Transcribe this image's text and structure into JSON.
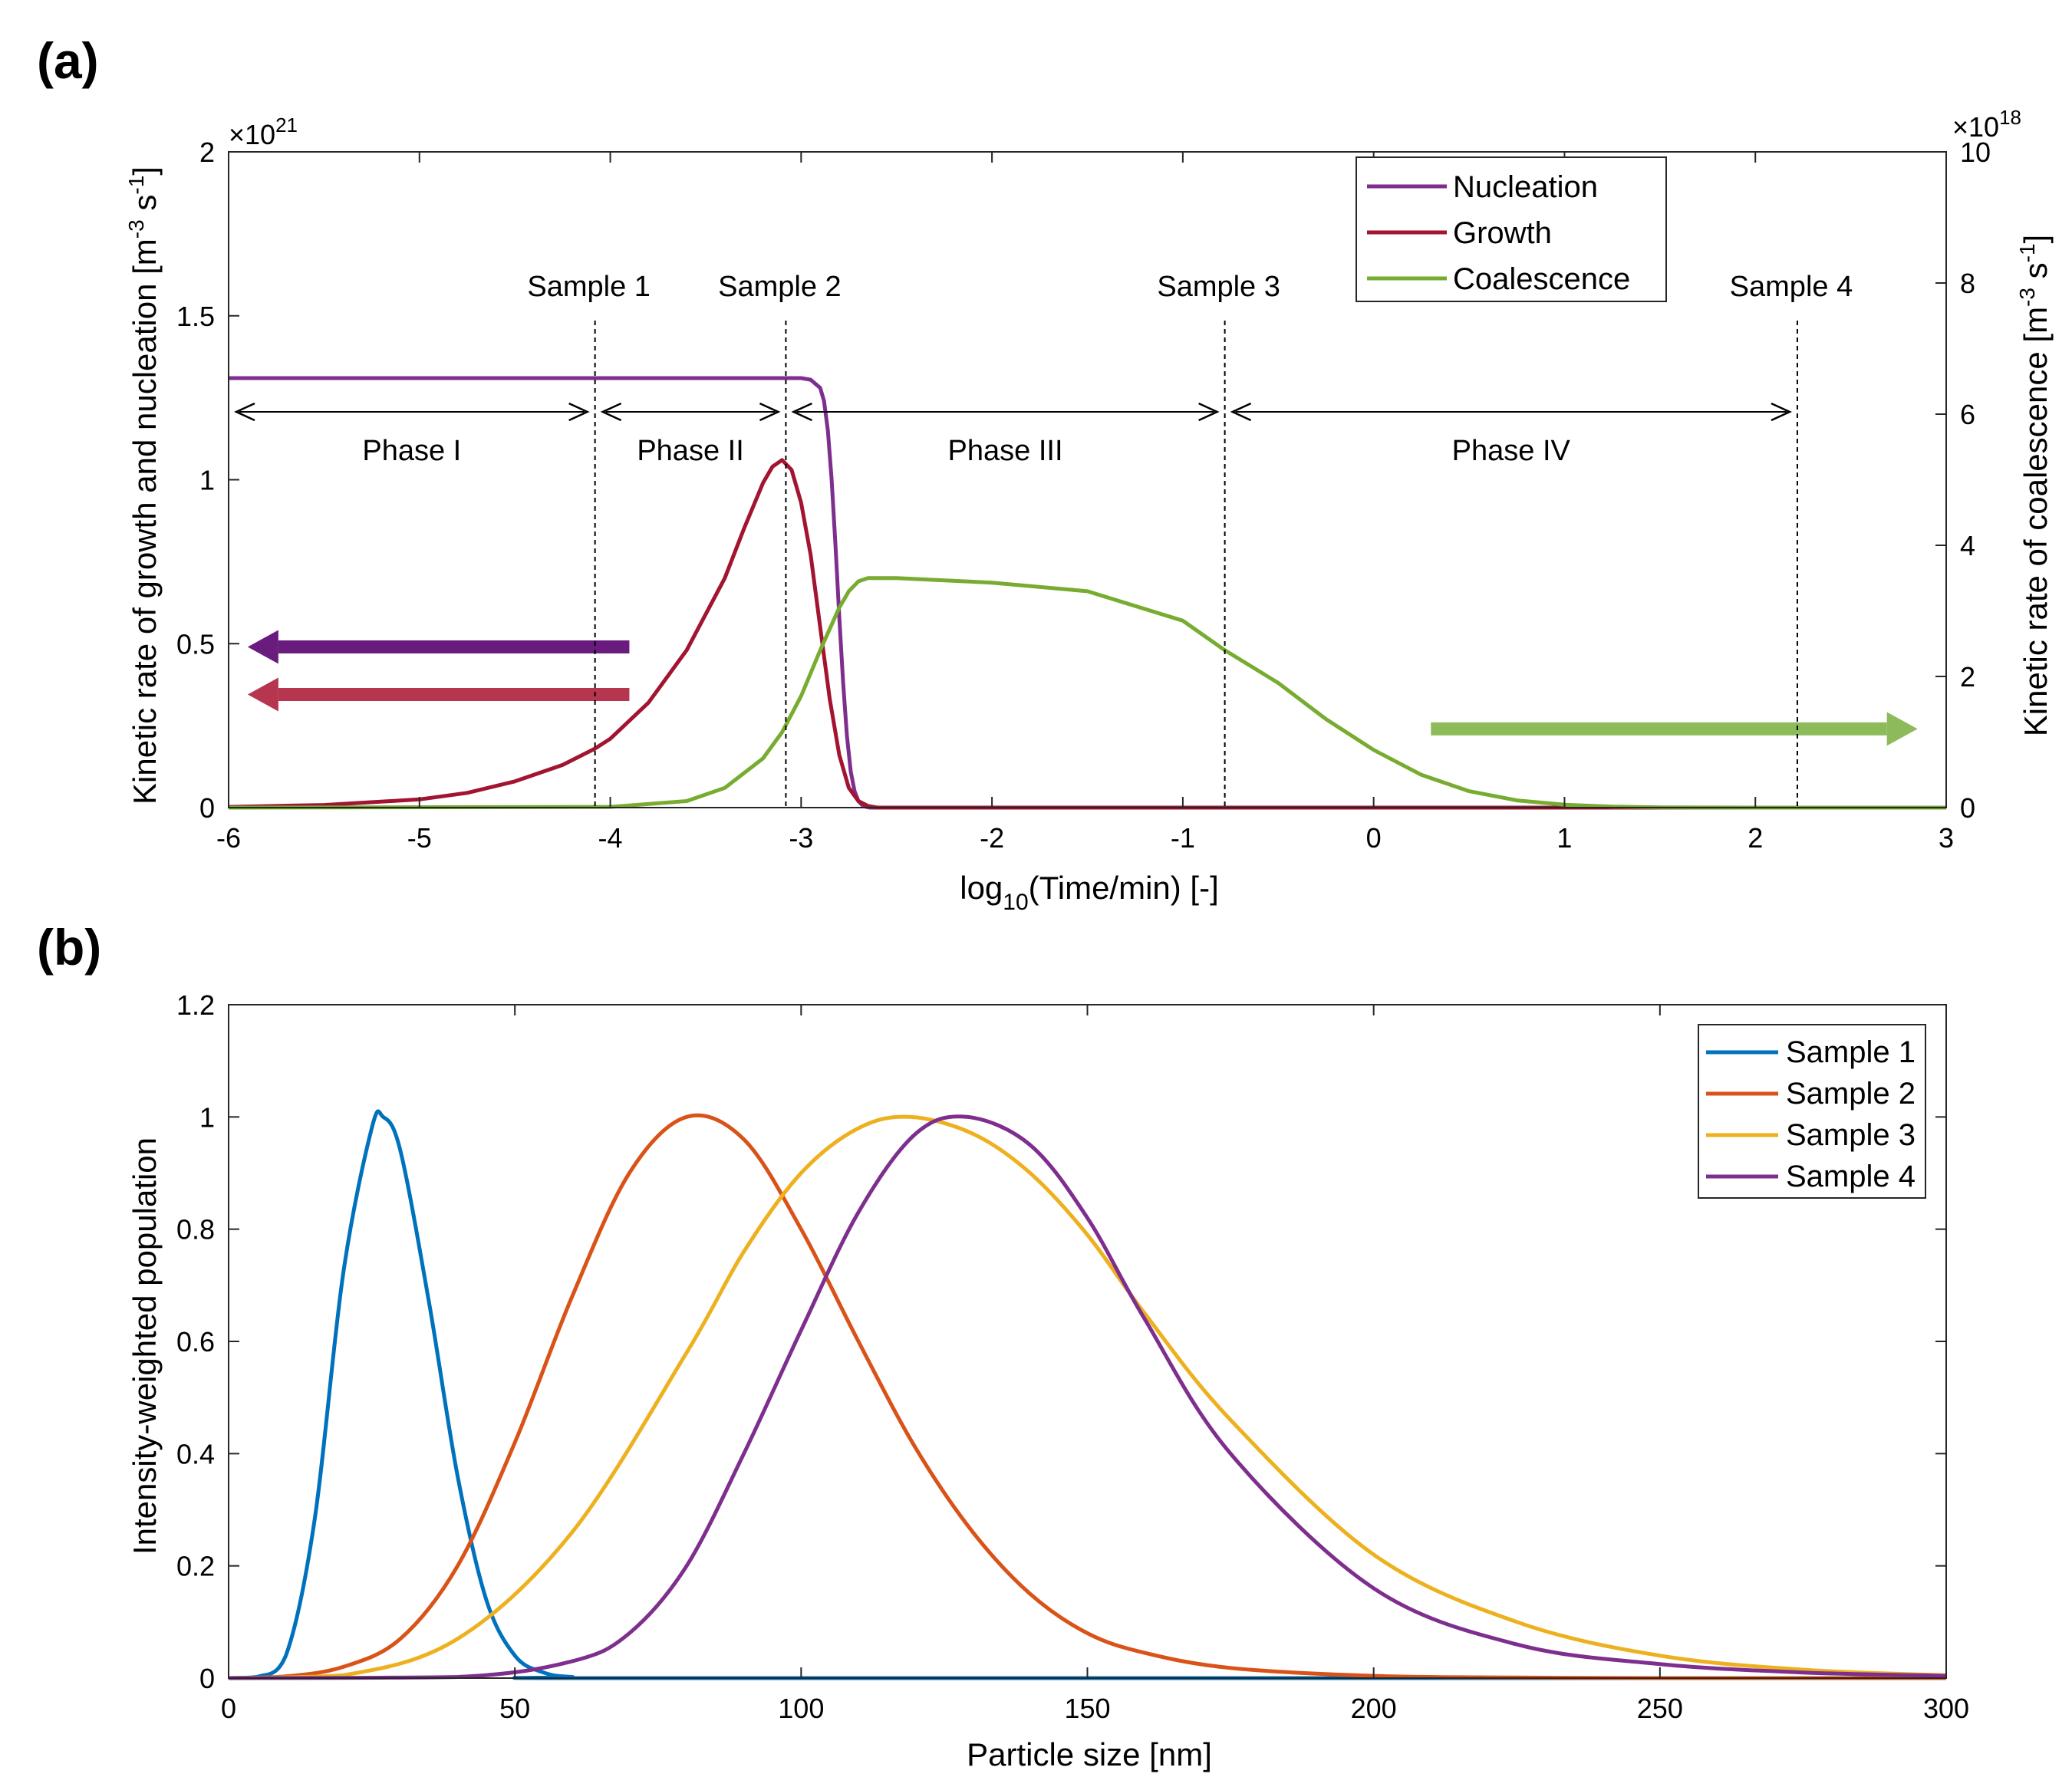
{
  "panels": {
    "a_label": "(a)",
    "b_label": "(b)"
  },
  "chart_data": [
    {
      "type": "line",
      "panel": "(a)",
      "xlabel_main": "log",
      "xlabel_sub": "10",
      "xlabel_rest": "(Time/min) [-]",
      "ylabel_left": "Kinetic rate of growth and nucleation [m",
      "ylabel_left_sup1": "-3",
      "ylabel_left_mid": " s",
      "ylabel_left_sup2": "-1",
      "ylabel_left_end": "]",
      "ylabel_right": "Kinetic rate of coalescence [m",
      "ylabel_right_sup1": "-3",
      "ylabel_right_mid": " s",
      "ylabel_right_sup2": "-1",
      "ylabel_right_end": "]",
      "xlim": [
        -6,
        3
      ],
      "ylim_left": [
        0,
        2
      ],
      "ylim_right": [
        0,
        10
      ],
      "left_multiplier_base": "×10",
      "left_multiplier_exp": "21",
      "right_multiplier_base": "×10",
      "right_multiplier_exp": "18",
      "xticks": [
        "-6",
        "-5",
        "-4",
        "-3",
        "-2",
        "-1",
        "0",
        "1",
        "2",
        "3"
      ],
      "yticks_left": [
        "0",
        "0.5",
        "1",
        "1.5",
        "2"
      ],
      "yticks_right": [
        "0",
        "2",
        "4",
        "6",
        "8",
        "10"
      ],
      "legend": [
        "Nucleation",
        "Growth",
        "Coalescence"
      ],
      "legend_placement": "top-right",
      "colors": {
        "nucleation": "#7E2F8E",
        "growth": "#A2142F",
        "coalescence": "#77AC30",
        "growth_arrow": "#B5364E",
        "nucleation_arrow": "#6A1B7E",
        "coalescence_arrow": "#8DBB5A"
      },
      "samples": [
        {
          "label": "Sample 1",
          "x": -4.08
        },
        {
          "label": "Sample 2",
          "x": -3.08
        },
        {
          "label": "Sample 3",
          "x": -0.78
        },
        {
          "label": "Sample 4",
          "x": 2.22
        }
      ],
      "phases": [
        {
          "label": "Phase I",
          "from": -6,
          "to": -4.08
        },
        {
          "label": "Phase II",
          "from": -4.08,
          "to": -3.08
        },
        {
          "label": "Phase III",
          "from": -3.08,
          "to": -0.78
        },
        {
          "label": "Phase IV",
          "from": -0.78,
          "to": 2.22
        }
      ],
      "series": [
        {
          "name": "Nucleation",
          "axis": "left",
          "x": [
            -6,
            -3.1,
            -3.0,
            -2.95,
            -2.9,
            -2.88,
            -2.86,
            -2.84,
            -2.82,
            -2.8,
            -2.78,
            -2.76,
            -2.74,
            -2.72,
            -2.7,
            -2.68,
            -2.66,
            -2.64,
            3
          ],
          "y": [
            1.31,
            1.31,
            1.31,
            1.305,
            1.28,
            1.24,
            1.15,
            1.0,
            0.8,
            0.58,
            0.38,
            0.22,
            0.11,
            0.05,
            0.02,
            0.008,
            0.002,
            0,
            0
          ]
        },
        {
          "name": "Growth",
          "axis": "left",
          "x": [
            -6,
            -5.5,
            -5.0,
            -4.75,
            -4.5,
            -4.25,
            -4.08,
            -4.0,
            -3.8,
            -3.6,
            -3.4,
            -3.3,
            -3.2,
            -3.15,
            -3.1,
            -3.05,
            -3.0,
            -2.95,
            -2.9,
            -2.85,
            -2.8,
            -2.75,
            -2.7,
            -2.65,
            -2.6,
            3
          ],
          "y": [
            0.002,
            0.008,
            0.025,
            0.045,
            0.08,
            0.13,
            0.18,
            0.21,
            0.32,
            0.48,
            0.7,
            0.85,
            0.99,
            1.04,
            1.06,
            1.03,
            0.93,
            0.77,
            0.55,
            0.33,
            0.16,
            0.06,
            0.02,
            0.005,
            0,
            0
          ]
        },
        {
          "name": "Coalescence",
          "axis": "right",
          "x": [
            -6,
            -4.0,
            -3.6,
            -3.4,
            -3.2,
            -3.1,
            -3.0,
            -2.9,
            -2.8,
            -2.75,
            -2.7,
            -2.65,
            -2.6,
            -2.5,
            -2.0,
            -1.5,
            -1.0,
            -0.78,
            -0.5,
            -0.25,
            0.0,
            0.25,
            0.5,
            0.75,
            1.0,
            1.25,
            1.5,
            1.75,
            2.0,
            3
          ],
          "y": [
            0,
            0.01,
            0.1,
            0.3,
            0.75,
            1.15,
            1.7,
            2.4,
            3.05,
            3.3,
            3.45,
            3.5,
            3.5,
            3.5,
            3.43,
            3.3,
            2.85,
            2.4,
            1.9,
            1.35,
            0.88,
            0.5,
            0.25,
            0.11,
            0.045,
            0.015,
            0.004,
            0.001,
            0,
            0
          ]
        }
      ],
      "arrows": [
        {
          "name": "Nucleation",
          "direction": "left",
          "axis": "left",
          "y": 0.49
        },
        {
          "name": "Growth",
          "direction": "left",
          "axis": "left",
          "y": 0.345
        },
        {
          "name": "Coalescence",
          "direction": "right",
          "axis": "left",
          "y": 0.24
        }
      ]
    },
    {
      "type": "line",
      "panel": "(b)",
      "xlabel": "Particle size [nm]",
      "ylabel": "Intensity-weighted population",
      "xlim": [
        0,
        300
      ],
      "ylim": [
        0,
        1.2
      ],
      "xticks": [
        "0",
        "50",
        "100",
        "150",
        "200",
        "250",
        "300"
      ],
      "yticks": [
        "0",
        "0.2",
        "0.4",
        "0.6",
        "0.8",
        "1",
        "1.2"
      ],
      "legend": [
        "Sample 1",
        "Sample 2",
        "Sample 3",
        "Sample 4"
      ],
      "legend_placement": "top-right",
      "colors": {
        "s1": "#0072BD",
        "s2": "#D95319",
        "s3": "#EDB120",
        "s4": "#7E2F8E"
      },
      "series": [
        {
          "name": "Sample 1",
          "x": [
            0,
            5,
            10,
            15,
            20,
            25,
            27,
            30,
            35,
            40,
            45,
            50,
            55,
            60,
            70,
            300
          ],
          "y": [
            0,
            0.002,
            0.04,
            0.28,
            0.72,
            0.98,
            1.0,
            0.94,
            0.67,
            0.36,
            0.14,
            0.04,
            0.01,
            0.002,
            0,
            0
          ]
        },
        {
          "name": "Sample 2",
          "x": [
            0,
            10,
            20,
            30,
            40,
            50,
            60,
            70,
            80,
            90,
            100,
            110,
            120,
            130,
            140,
            150,
            160,
            175,
            200,
            225,
            250,
            300
          ],
          "y": [
            0,
            0.003,
            0.02,
            0.07,
            0.2,
            0.42,
            0.68,
            0.9,
            1.0,
            0.96,
            0.8,
            0.6,
            0.41,
            0.26,
            0.15,
            0.08,
            0.045,
            0.018,
            0.004,
            0.001,
            0,
            0
          ]
        },
        {
          "name": "Sample 3",
          "x": [
            0,
            20,
            40,
            60,
            80,
            90,
            100,
            110,
            119,
            130,
            140,
            150,
            160,
            175,
            200,
            225,
            250,
            275,
            300
          ],
          "y": [
            0,
            0.005,
            0.07,
            0.26,
            0.58,
            0.76,
            0.9,
            0.98,
            1.0,
            0.97,
            0.9,
            0.79,
            0.65,
            0.46,
            0.22,
            0.1,
            0.04,
            0.015,
            0.005
          ]
        },
        {
          "name": "Sample 4",
          "x": [
            0,
            40,
            60,
            70,
            80,
            90,
            100,
            110,
            120,
            129,
            140,
            150,
            160,
            175,
            200,
            225,
            250,
            275,
            300
          ],
          "y": [
            0,
            0.002,
            0.03,
            0.08,
            0.2,
            0.4,
            0.62,
            0.83,
            0.97,
            1.0,
            0.95,
            0.82,
            0.64,
            0.4,
            0.16,
            0.06,
            0.025,
            0.01,
            0.004
          ]
        }
      ]
    }
  ]
}
